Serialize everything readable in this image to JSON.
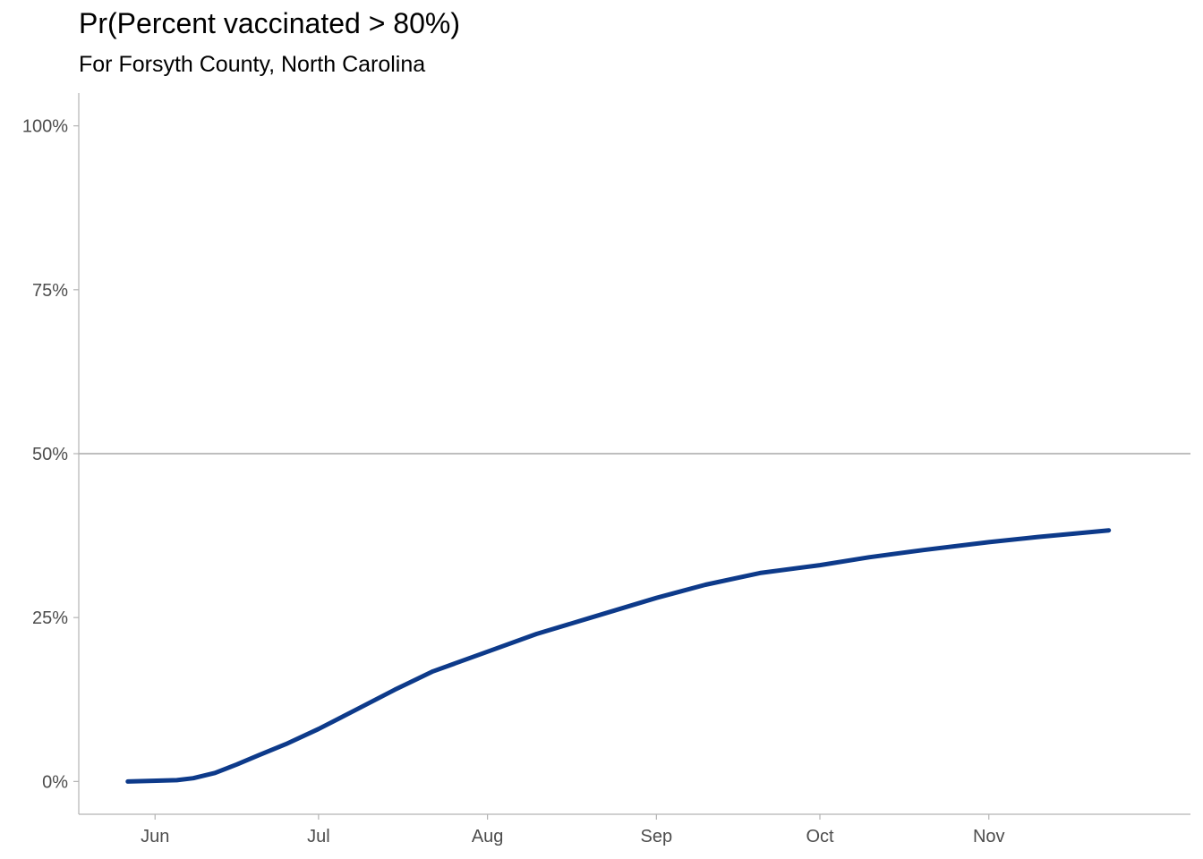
{
  "chart_data": {
    "type": "line",
    "title": "Pr(Percent vaccinated > 80%)",
    "subtitle": "For Forsyth County, North Carolina",
    "xlabel": "",
    "ylabel": "",
    "x_ticks": [
      "Jun",
      "Jul",
      "Aug",
      "Sep",
      "Oct",
      "Nov"
    ],
    "x_tick_dates": [
      "2021-06-01",
      "2021-07-01",
      "2021-08-01",
      "2021-09-01",
      "2021-10-01",
      "2021-11-01"
    ],
    "y_ticks": [
      "0%",
      "25%",
      "50%",
      "75%",
      "100%"
    ],
    "y_tick_values": [
      0,
      25,
      50,
      75,
      100
    ],
    "xlim": [
      "2021-05-18",
      "2021-12-08"
    ],
    "ylim": [
      -5,
      105
    ],
    "reference_line": 50,
    "grid": false,
    "line_color": "#0d3a8a",
    "reference_color": "#bebebe",
    "axis_color": "#b3b3b3",
    "series": [
      {
        "x": [
          "2021-05-27",
          "2021-06-05",
          "2021-06-08",
          "2021-06-12",
          "2021-06-16",
          "2021-06-20",
          "2021-06-25",
          "2021-07-01",
          "2021-07-08",
          "2021-07-15",
          "2021-07-22",
          "2021-08-01",
          "2021-08-10",
          "2021-08-20",
          "2021-09-01",
          "2021-09-10",
          "2021-09-20",
          "2021-10-01",
          "2021-10-10",
          "2021-10-20",
          "2021-11-01",
          "2021-11-10",
          "2021-11-23"
        ],
        "y": [
          0.0,
          0.2,
          0.5,
          1.3,
          2.6,
          4.0,
          5.7,
          8.0,
          11.0,
          14.0,
          16.8,
          19.8,
          22.5,
          25.0,
          28.0,
          30.0,
          31.8,
          33.0,
          34.2,
          35.3,
          36.5,
          37.3,
          38.3
        ]
      }
    ]
  }
}
